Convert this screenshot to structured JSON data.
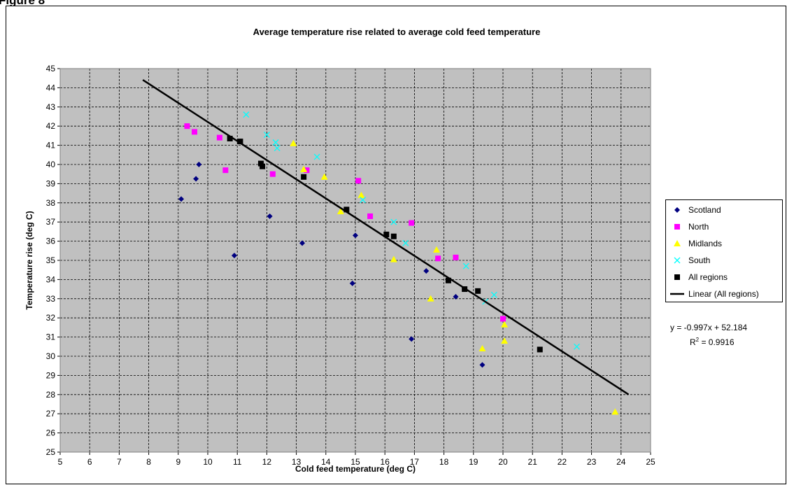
{
  "figure_label": "Figure 8",
  "chart_data": {
    "type": "scatter",
    "title": "Average temperature rise related to average cold feed temperature",
    "xlabel": "Cold feed temperature (deg C)",
    "ylabel": "Temperature rise (deg C)",
    "xlim": [
      5,
      25
    ],
    "xticks": [
      5,
      6,
      7,
      8,
      9,
      10,
      11,
      12,
      13,
      14,
      15,
      16,
      17,
      18,
      19,
      20,
      21,
      22,
      23,
      24,
      25
    ],
    "ylim": [
      25,
      45
    ],
    "yticks": [
      25,
      26,
      27,
      28,
      29,
      30,
      31,
      32,
      33,
      34,
      35,
      36,
      37,
      38,
      39,
      40,
      41,
      42,
      43,
      44,
      45
    ],
    "grid": true,
    "legend": "right",
    "series": [
      {
        "name": "Scotland",
        "color": "#000080",
        "marker": "diamond",
        "x": [
          9.1,
          9.6,
          9.7,
          10.9,
          12.1,
          13.2,
          14.9,
          15.0,
          16.9,
          17.4,
          18.4,
          19.3
        ],
        "values": [
          38.2,
          39.25,
          40.0,
          35.25,
          37.3,
          35.9,
          33.8,
          36.3,
          30.9,
          34.45,
          33.1,
          29.55
        ]
      },
      {
        "name": "North",
        "color": "#ff00ff",
        "marker": "square",
        "x": [
          9.3,
          9.55,
          10.4,
          10.6,
          12.2,
          13.35,
          15.1,
          15.5,
          16.9,
          17.8,
          18.4,
          20.0
        ],
        "values": [
          42.0,
          41.7,
          41.4,
          39.7,
          39.5,
          39.7,
          39.15,
          37.3,
          36.95,
          35.1,
          35.15,
          31.95
        ]
      },
      {
        "name": "Midlands",
        "color": "#ffff00",
        "marker": "triangle",
        "x": [
          12.9,
          13.25,
          13.95,
          14.5,
          15.2,
          16.3,
          17.55,
          17.75,
          19.3,
          20.05,
          20.05,
          23.8
        ],
        "values": [
          41.1,
          39.75,
          39.35,
          37.55,
          38.4,
          35.05,
          33.0,
          35.55,
          30.4,
          31.65,
          30.8,
          27.1
        ]
      },
      {
        "name": "South",
        "color": "#00ffff",
        "marker": "cross",
        "x": [
          11.3,
          12.0,
          12.3,
          12.35,
          13.7,
          15.25,
          16.3,
          16.7,
          18.75,
          19.4,
          19.7,
          22.5
        ],
        "values": [
          42.6,
          41.55,
          41.15,
          40.85,
          40.4,
          38.15,
          37.0,
          35.9,
          34.7,
          32.85,
          33.2,
          30.5
        ]
      },
      {
        "name": "All regions",
        "color": "#000000",
        "marker": "square",
        "x": [
          10.75,
          11.1,
          11.8,
          11.85,
          13.25,
          14.7,
          16.05,
          16.3,
          18.15,
          18.7,
          19.15,
          21.25
        ],
        "values": [
          41.35,
          41.2,
          40.05,
          39.9,
          39.35,
          37.65,
          36.35,
          36.25,
          33.95,
          33.5,
          33.4,
          30.35
        ]
      },
      {
        "name": "Linear (All regions)",
        "color": "#000000",
        "marker": "line",
        "x": [
          7.8,
          24.25
        ],
        "values": [
          44.41,
          28.01
        ]
      }
    ],
    "equation": "y = -0.997x + 52.184",
    "r2": {
      "base": "R",
      "sup": "2",
      "rest": " = 0.9916"
    }
  }
}
